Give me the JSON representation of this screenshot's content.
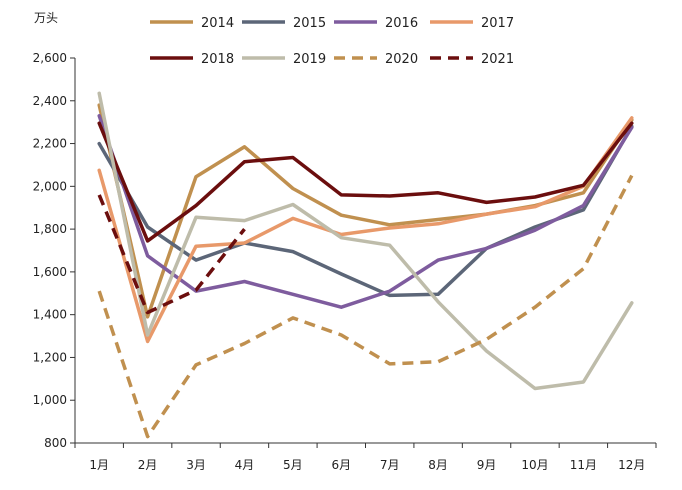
{
  "chart_data": {
    "type": "line",
    "title": "",
    "unit_label": "万头",
    "xlabel": "",
    "ylabel": "",
    "categories": [
      "1月",
      "2月",
      "3月",
      "4月",
      "5月",
      "6月",
      "7月",
      "8月",
      "9月",
      "10月",
      "11月",
      "12月"
    ],
    "ylim": [
      800,
      2600
    ],
    "yticks": [
      800,
      1000,
      1200,
      1400,
      1600,
      1800,
      2000,
      2200,
      2400,
      2600
    ],
    "ytick_labels": [
      "800",
      "1,000",
      "1,200",
      "1,400",
      "1,600",
      "1,800",
      "2,000",
      "2,200",
      "2,400",
      "2,600"
    ],
    "grid": false,
    "legend_position": "top",
    "series": [
      {
        "name": "2014",
        "color": "#C0904F",
        "dashed": false,
        "values": [
          2380,
          1390,
          2045,
          2185,
          1990,
          1865,
          1820,
          1845,
          1870,
          1910,
          1970,
          2310
        ]
      },
      {
        "name": "2015",
        "color": "#5C6678",
        "dashed": false,
        "values": [
          2200,
          1810,
          1655,
          1735,
          1695,
          1590,
          1490,
          1495,
          1710,
          1810,
          1890,
          2280
        ]
      },
      {
        "name": "2016",
        "color": "#7E5C9E",
        "dashed": false,
        "values": [
          2330,
          1675,
          1510,
          1555,
          1495,
          1435,
          1510,
          1655,
          1710,
          1795,
          1910,
          2275
        ]
      },
      {
        "name": "2017",
        "color": "#E8996A",
        "dashed": false,
        "values": [
          2075,
          1275,
          1720,
          1735,
          1850,
          1775,
          1805,
          1825,
          1870,
          1905,
          2000,
          2320
        ]
      },
      {
        "name": "2018",
        "color": "#6B0E0E",
        "dashed": false,
        "values": [
          2295,
          1745,
          1910,
          2115,
          2135,
          1960,
          1955,
          1970,
          1925,
          1950,
          2005,
          2295
        ]
      },
      {
        "name": "2019",
        "color": "#BEBCAA",
        "dashed": false,
        "values": [
          2435,
          1305,
          1855,
          1840,
          1915,
          1760,
          1725,
          1460,
          1230,
          1055,
          1085,
          1455
        ]
      },
      {
        "name": "2020",
        "color": "#C0904F",
        "dashed": true,
        "values": [
          1510,
          830,
          1165,
          1265,
          1385,
          1305,
          1170,
          1180,
          1285,
          1435,
          1615,
          2050
        ]
      },
      {
        "name": "2021",
        "color": "#6B0E0E",
        "dashed": true,
        "values": [
          1960,
          1410,
          1515,
          1800,
          null,
          null,
          null,
          null,
          null,
          null,
          null,
          null
        ]
      }
    ]
  }
}
